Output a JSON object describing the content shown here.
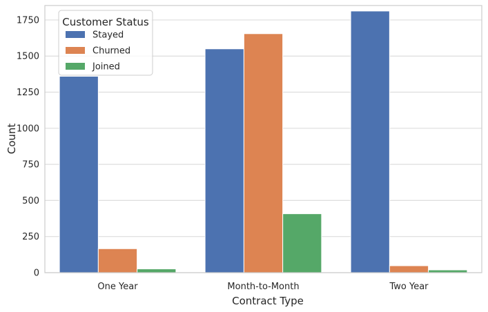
{
  "chart_data": {
    "type": "bar",
    "title": "",
    "xlabel": "Contract Type",
    "ylabel": "Count",
    "categories": [
      "One Year",
      "Month-to-Month",
      "Two Year"
    ],
    "series": [
      {
        "name": "Stayed",
        "values": [
          1360,
          1550,
          1812
        ],
        "color": "#4c72b0"
      },
      {
        "name": "Churned",
        "values": [
          166,
          1655,
          48
        ],
        "color": "#dd8452"
      },
      {
        "name": "Joined",
        "values": [
          26,
          408,
          19
        ],
        "color": "#55a868"
      }
    ],
    "ylim": [
      0,
      1850
    ],
    "yticks": [
      0,
      250,
      500,
      750,
      1000,
      1250,
      1500,
      1750
    ],
    "grid": "y",
    "legend": {
      "title": "Customer Status",
      "placement": "top-left"
    }
  }
}
